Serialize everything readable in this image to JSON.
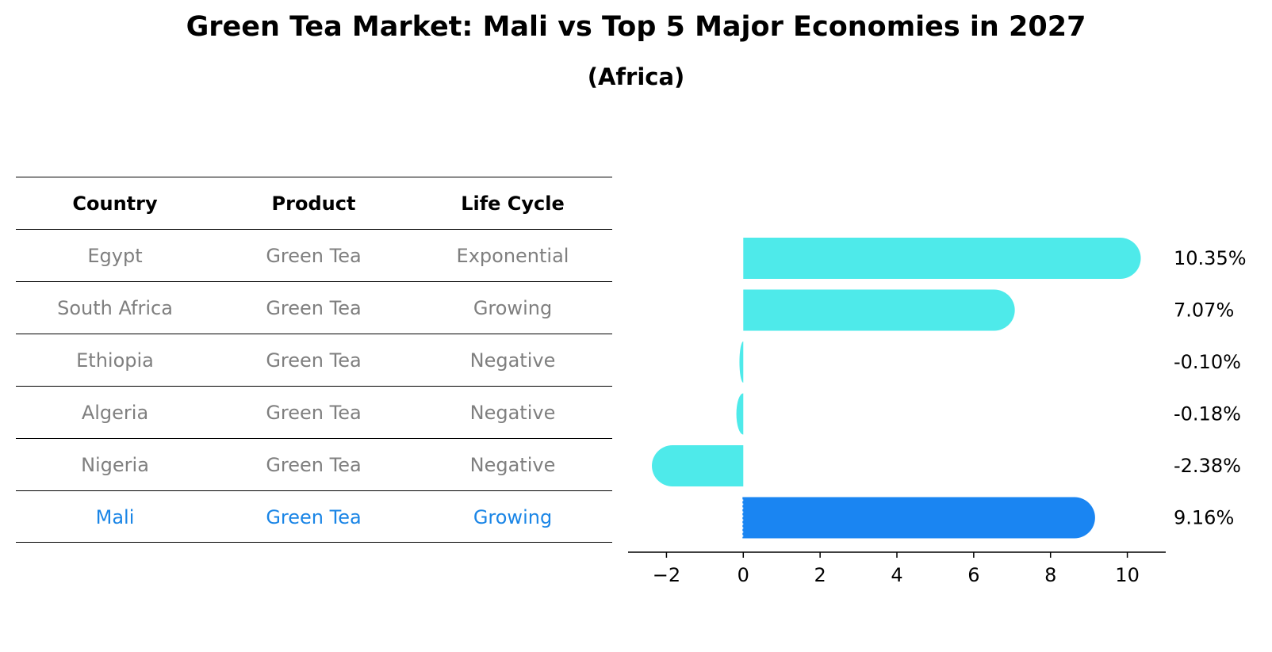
{
  "title": "Green Tea Market: Mali vs Top 5 Major Economies in 2027",
  "subtitle": "(Africa)",
  "table": {
    "headers": [
      "Country",
      "Product",
      "Life Cycle"
    ],
    "rows": [
      [
        "Egypt",
        "Green Tea",
        "Exponential"
      ],
      [
        "South Africa",
        "Green Tea",
        "Growing"
      ],
      [
        "Ethiopia",
        "Green Tea",
        "Negative"
      ],
      [
        "Algeria",
        "Green Tea",
        "Negative"
      ],
      [
        "Nigeria",
        "Green Tea",
        "Negative"
      ],
      [
        "Mali",
        "Green Tea",
        "Growing"
      ]
    ],
    "highlight_row": 5
  },
  "chart_data": {
    "type": "bar",
    "orientation": "horizontal",
    "title": "Green Tea Market: Mali vs Top 5 Major Economies in 2027",
    "subtitle": "(Africa)",
    "categories": [
      "Egypt",
      "South Africa",
      "Ethiopia",
      "Algeria",
      "Nigeria",
      "Mali"
    ],
    "values": [
      10.35,
      7.07,
      -0.1,
      -0.18,
      -2.38,
      9.16
    ],
    "labels": [
      "10.35%",
      "7.07%",
      "-0.10%",
      "-0.18%",
      "-2.38%",
      "9.16%"
    ],
    "xlim": [
      -3,
      11
    ],
    "xticks": [
      -2,
      0,
      2,
      4,
      6,
      8,
      10
    ],
    "xtick_labels": [
      "−2",
      "0",
      "2",
      "4",
      "6",
      "8",
      "10"
    ],
    "grid": false,
    "colors": {
      "default": "#4eeaea",
      "highlight": "#1a85f2"
    },
    "highlight_index": 5
  }
}
